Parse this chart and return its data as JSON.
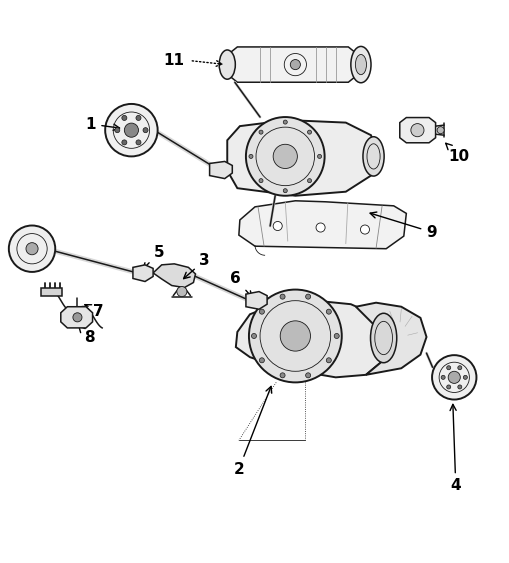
{
  "background_color": "#ffffff",
  "line_color": "#1a1a1a",
  "label_color": "#000000",
  "fig_width": 5.1,
  "fig_height": 5.63,
  "dpi": 100
}
